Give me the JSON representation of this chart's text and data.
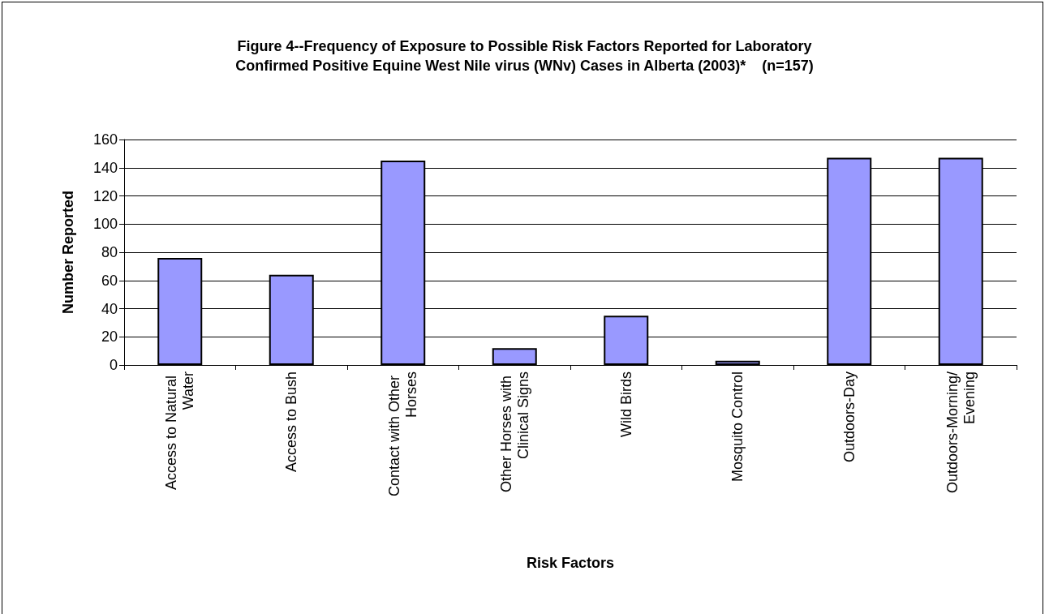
{
  "chart_data": {
    "type": "bar",
    "title": "Figure 4--Frequency of Exposure to Possible Risk Factors Reported for Laboratory\nConfirmed Positive Equine West Nile virus (WNv) Cases in Alberta (2003)*    (n=157)",
    "xlabel": "Risk Factors",
    "ylabel": "Number Reported",
    "categories": [
      "Access to Natural Water",
      "Access to Bush",
      "Contact with Other Horses",
      "Other Horses with Clinical Signs",
      "Wild Birds",
      "Mosquito Control",
      "Outdoors-Day",
      "Outdoors-Morning/Evening"
    ],
    "values": [
      76,
      64,
      145,
      12,
      35,
      3,
      147,
      147
    ],
    "color": "#9999ff",
    "ylim": [
      0,
      160
    ],
    "yticks": [
      0,
      20,
      40,
      60,
      80,
      100,
      120,
      140,
      160
    ],
    "grid": "y"
  }
}
